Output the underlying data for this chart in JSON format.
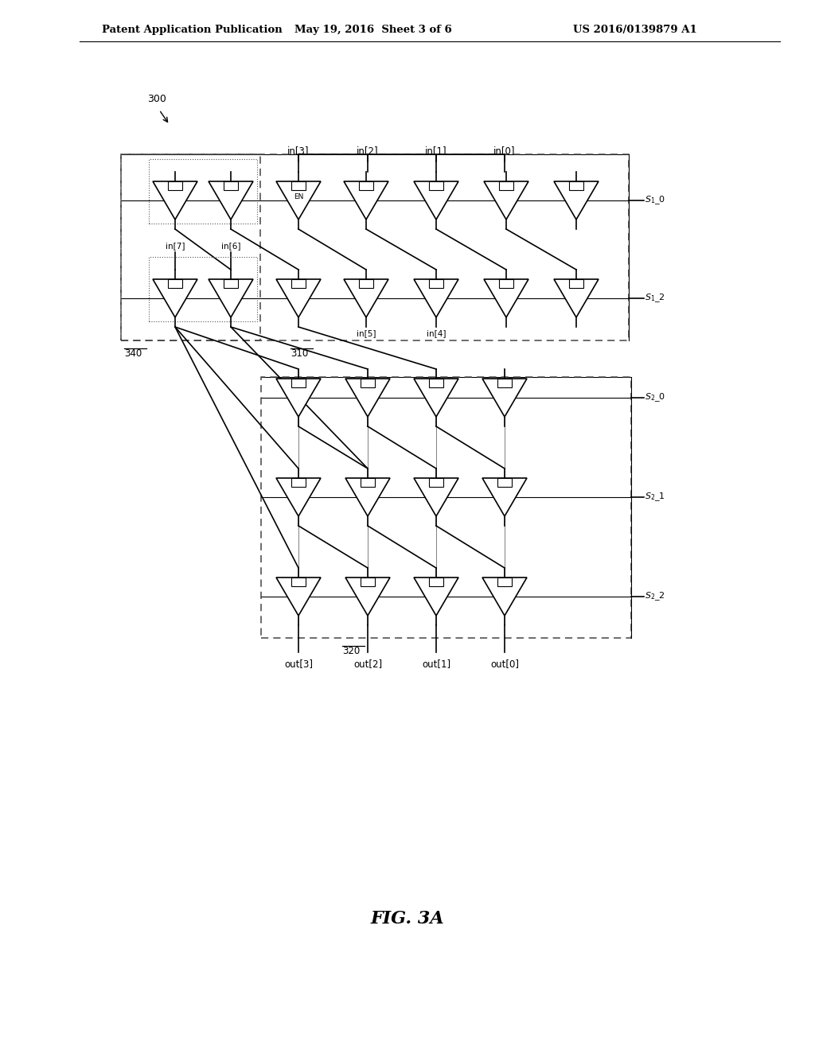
{
  "patent_header_left": "Patent Application Publication",
  "patent_header_mid": "May 19, 2016  Sheet 3 of 6",
  "patent_header_right": "US 2016/0139879 A1",
  "fig_label": "FIG. 3A",
  "label_300": "300",
  "label_310": "310",
  "label_320": "320",
  "label_340": "340",
  "in_labels_top": [
    "in[3]",
    "in[2]",
    "in[1]",
    "in[0]"
  ],
  "in_labels_left": [
    "in[7]",
    "in[6]"
  ],
  "in_labels_mid": [
    "in[5]",
    "in[4]"
  ],
  "out_labels": [
    "out[3]",
    "out[2]",
    "out[1]",
    "out[0]"
  ],
  "s1_labels": [
    "S1_0",
    "S1_2"
  ],
  "s2_labels": [
    "S2_0",
    "S2_1",
    "S2_2"
  ],
  "en_label": "EN",
  "bg_color": "#ffffff",
  "line_color": "#000000",
  "dashed_color": "#444444"
}
